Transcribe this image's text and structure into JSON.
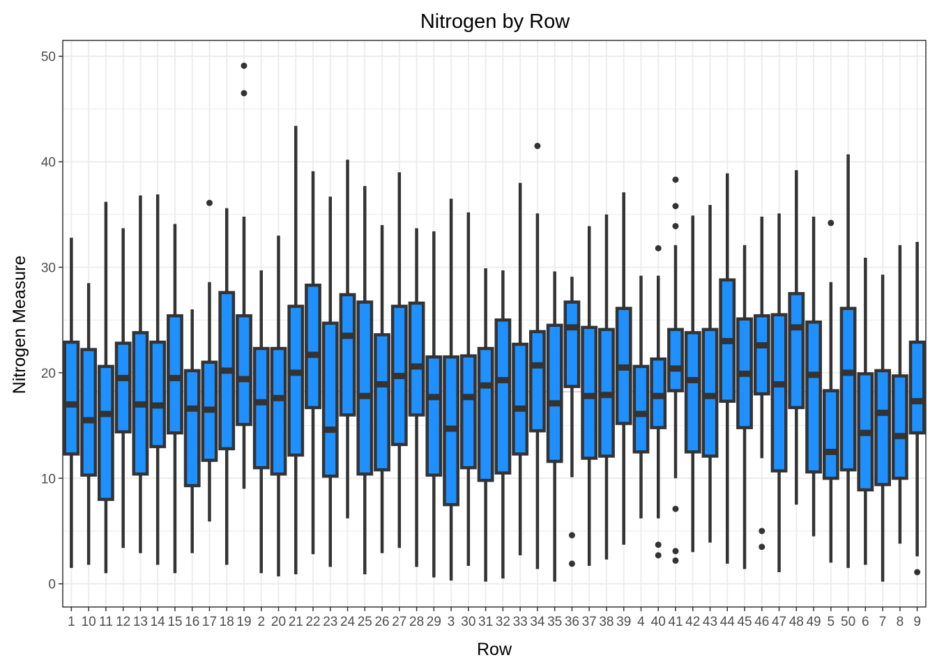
{
  "chart_data": {
    "type": "box",
    "title": "Nitrogen by Row",
    "xlabel": "Row",
    "ylabel": "Nitrogen Measure",
    "ylim": [
      -2.2,
      51.5
    ],
    "yticks": [
      0,
      10,
      20,
      30,
      40,
      50
    ],
    "grid": true,
    "legend": "none",
    "reference_line": {
      "value": 18.2,
      "color": "#ffc0cb"
    },
    "colors": {
      "box_fill": "#1e90ff",
      "box_stroke": "#333333",
      "panel_border": "#333333",
      "grid": "#ebebeb"
    },
    "categories": [
      "1",
      "10",
      "11",
      "12",
      "13",
      "14",
      "15",
      "16",
      "17",
      "18",
      "19",
      "2",
      "20",
      "21",
      "22",
      "23",
      "24",
      "25",
      "26",
      "27",
      "28",
      "29",
      "3",
      "30",
      "31",
      "32",
      "33",
      "34",
      "35",
      "36",
      "37",
      "38",
      "39",
      "4",
      "40",
      "41",
      "42",
      "43",
      "44",
      "45",
      "46",
      "47",
      "48",
      "49",
      "5",
      "50",
      "6",
      "7",
      "8",
      "9"
    ],
    "boxes": [
      {
        "row": "1",
        "min": 1.5,
        "q1": 12.3,
        "median": 17.0,
        "q3": 22.9,
        "max": 32.8,
        "outliers": []
      },
      {
        "row": "10",
        "min": 1.8,
        "q1": 10.3,
        "median": 15.5,
        "q3": 22.2,
        "max": 28.5,
        "outliers": []
      },
      {
        "row": "11",
        "min": 1.0,
        "q1": 8.0,
        "median": 16.1,
        "q3": 20.6,
        "max": 36.2,
        "outliers": []
      },
      {
        "row": "12",
        "min": 3.4,
        "q1": 14.4,
        "median": 19.5,
        "q3": 22.8,
        "max": 33.7,
        "outliers": []
      },
      {
        "row": "13",
        "min": 2.9,
        "q1": 10.4,
        "median": 17.0,
        "q3": 23.8,
        "max": 36.8,
        "outliers": []
      },
      {
        "row": "14",
        "min": 1.8,
        "q1": 13.0,
        "median": 16.9,
        "q3": 22.9,
        "max": 36.9,
        "outliers": []
      },
      {
        "row": "15",
        "min": 1.0,
        "q1": 14.3,
        "median": 19.5,
        "q3": 25.4,
        "max": 34.1,
        "outliers": []
      },
      {
        "row": "16",
        "min": 2.9,
        "q1": 9.3,
        "median": 16.6,
        "q3": 20.2,
        "max": 26.0,
        "outliers": []
      },
      {
        "row": "17",
        "min": 5.9,
        "q1": 11.7,
        "median": 16.5,
        "q3": 21.0,
        "max": 28.6,
        "outliers": [
          36.1
        ]
      },
      {
        "row": "18",
        "min": 1.8,
        "q1": 12.8,
        "median": 20.2,
        "q3": 27.6,
        "max": 35.6,
        "outliers": []
      },
      {
        "row": "19",
        "min": 9.0,
        "q1": 15.1,
        "median": 19.4,
        "q3": 25.4,
        "max": 34.8,
        "outliers": [
          46.5,
          49.1
        ]
      },
      {
        "row": "2",
        "min": 1.0,
        "q1": 11.0,
        "median": 17.2,
        "q3": 22.3,
        "max": 29.7,
        "outliers": []
      },
      {
        "row": "20",
        "min": 0.7,
        "q1": 10.4,
        "median": 17.6,
        "q3": 22.3,
        "max": 33.0,
        "outliers": []
      },
      {
        "row": "21",
        "min": 0.9,
        "q1": 12.2,
        "median": 20.0,
        "q3": 26.3,
        "max": 43.4,
        "outliers": []
      },
      {
        "row": "22",
        "min": 2.8,
        "q1": 16.7,
        "median": 21.7,
        "q3": 28.3,
        "max": 39.1,
        "outliers": []
      },
      {
        "row": "23",
        "min": 1.6,
        "q1": 10.2,
        "median": 14.6,
        "q3": 24.7,
        "max": 36.7,
        "outliers": []
      },
      {
        "row": "24",
        "min": 6.2,
        "q1": 16.0,
        "median": 23.5,
        "q3": 27.4,
        "max": 40.2,
        "outliers": []
      },
      {
        "row": "25",
        "min": 0.9,
        "q1": 10.4,
        "median": 17.8,
        "q3": 26.7,
        "max": 37.7,
        "outliers": []
      },
      {
        "row": "26",
        "min": 2.9,
        "q1": 10.8,
        "median": 18.9,
        "q3": 23.6,
        "max": 34.0,
        "outliers": []
      },
      {
        "row": "27",
        "min": 3.4,
        "q1": 13.2,
        "median": 19.7,
        "q3": 26.3,
        "max": 39.0,
        "outliers": []
      },
      {
        "row": "28",
        "min": 1.6,
        "q1": 16.0,
        "median": 20.6,
        "q3": 26.6,
        "max": 33.7,
        "outliers": []
      },
      {
        "row": "29",
        "min": 0.6,
        "q1": 10.3,
        "median": 17.7,
        "q3": 21.5,
        "max": 33.4,
        "outliers": []
      },
      {
        "row": "3",
        "min": 0.3,
        "q1": 7.5,
        "median": 14.7,
        "q3": 21.5,
        "max": 36.5,
        "outliers": []
      },
      {
        "row": "30",
        "min": 1.7,
        "q1": 11.0,
        "median": 17.7,
        "q3": 21.6,
        "max": 35.2,
        "outliers": []
      },
      {
        "row": "31",
        "min": 0.2,
        "q1": 9.8,
        "median": 18.8,
        "q3": 22.3,
        "max": 29.9,
        "outliers": []
      },
      {
        "row": "32",
        "min": 0.5,
        "q1": 10.5,
        "median": 19.3,
        "q3": 25.0,
        "max": 29.7,
        "outliers": []
      },
      {
        "row": "33",
        "min": 2.7,
        "q1": 12.3,
        "median": 16.6,
        "q3": 22.7,
        "max": 38.0,
        "outliers": []
      },
      {
        "row": "34",
        "min": 1.4,
        "q1": 14.5,
        "median": 20.7,
        "q3": 23.9,
        "max": 35.1,
        "outliers": [
          41.5
        ]
      },
      {
        "row": "35",
        "min": 0.2,
        "q1": 11.6,
        "median": 17.1,
        "q3": 24.5,
        "max": 29.6,
        "outliers": []
      },
      {
        "row": "36",
        "min": 10.1,
        "q1": 18.7,
        "median": 24.3,
        "q3": 26.7,
        "max": 29.1,
        "outliers": [
          4.6,
          1.9
        ]
      },
      {
        "row": "37",
        "min": 1.7,
        "q1": 11.9,
        "median": 17.8,
        "q3": 24.3,
        "max": 33.9,
        "outliers": []
      },
      {
        "row": "38",
        "min": 2.3,
        "q1": 12.1,
        "median": 17.9,
        "q3": 24.1,
        "max": 35.0,
        "outliers": []
      },
      {
        "row": "39",
        "min": 3.7,
        "q1": 15.2,
        "median": 20.5,
        "q3": 26.1,
        "max": 37.1,
        "outliers": []
      },
      {
        "row": "4",
        "min": 6.2,
        "q1": 12.5,
        "median": 16.1,
        "q3": 20.6,
        "max": 29.2,
        "outliers": []
      },
      {
        "row": "40",
        "min": 6.2,
        "q1": 14.8,
        "median": 17.8,
        "q3": 21.3,
        "max": 29.2,
        "outliers": [
          31.8,
          3.7,
          2.7
        ]
      },
      {
        "row": "41",
        "min": 10.0,
        "q1": 18.3,
        "median": 20.4,
        "q3": 24.1,
        "max": 32.1,
        "outliers": [
          38.3,
          35.8,
          33.9,
          7.1,
          3.1,
          2.2
        ]
      },
      {
        "row": "42",
        "min": 3.0,
        "q1": 12.5,
        "median": 19.3,
        "q3": 23.8,
        "max": 34.9,
        "outliers": []
      },
      {
        "row": "43",
        "min": 3.9,
        "q1": 12.1,
        "median": 17.8,
        "q3": 24.1,
        "max": 35.9,
        "outliers": []
      },
      {
        "row": "44",
        "min": 1.9,
        "q1": 17.3,
        "median": 23.0,
        "q3": 28.8,
        "max": 38.9,
        "outliers": []
      },
      {
        "row": "45",
        "min": 1.4,
        "q1": 14.8,
        "median": 19.9,
        "q3": 25.1,
        "max": 32.1,
        "outliers": []
      },
      {
        "row": "46",
        "min": 11.9,
        "q1": 18.0,
        "median": 22.6,
        "q3": 25.4,
        "max": 34.8,
        "outliers": [
          5.0,
          3.5
        ]
      },
      {
        "row": "47",
        "min": 1.1,
        "q1": 10.7,
        "median": 18.9,
        "q3": 25.5,
        "max": 35.1,
        "outliers": []
      },
      {
        "row": "48",
        "min": 7.5,
        "q1": 16.7,
        "median": 24.3,
        "q3": 27.5,
        "max": 39.2,
        "outliers": []
      },
      {
        "row": "49",
        "min": 4.5,
        "q1": 10.6,
        "median": 19.8,
        "q3": 24.8,
        "max": 34.8,
        "outliers": []
      },
      {
        "row": "5",
        "min": 2.0,
        "q1": 10.0,
        "median": 12.5,
        "q3": 18.3,
        "max": 28.6,
        "outliers": [
          34.2
        ]
      },
      {
        "row": "50",
        "min": 1.5,
        "q1": 10.8,
        "median": 20.0,
        "q3": 26.1,
        "max": 40.7,
        "outliers": []
      },
      {
        "row": "6",
        "min": 1.8,
        "q1": 8.9,
        "median": 14.3,
        "q3": 19.9,
        "max": 30.9,
        "outliers": []
      },
      {
        "row": "7",
        "min": 0.2,
        "q1": 9.4,
        "median": 16.2,
        "q3": 20.2,
        "max": 29.3,
        "outliers": []
      },
      {
        "row": "8",
        "min": 3.8,
        "q1": 10.0,
        "median": 14.0,
        "q3": 19.7,
        "max": 32.1,
        "outliers": []
      },
      {
        "row": "9",
        "min": 2.6,
        "q1": 14.3,
        "median": 17.3,
        "q3": 22.9,
        "max": 32.4,
        "outliers": [
          1.1
        ]
      }
    ]
  }
}
